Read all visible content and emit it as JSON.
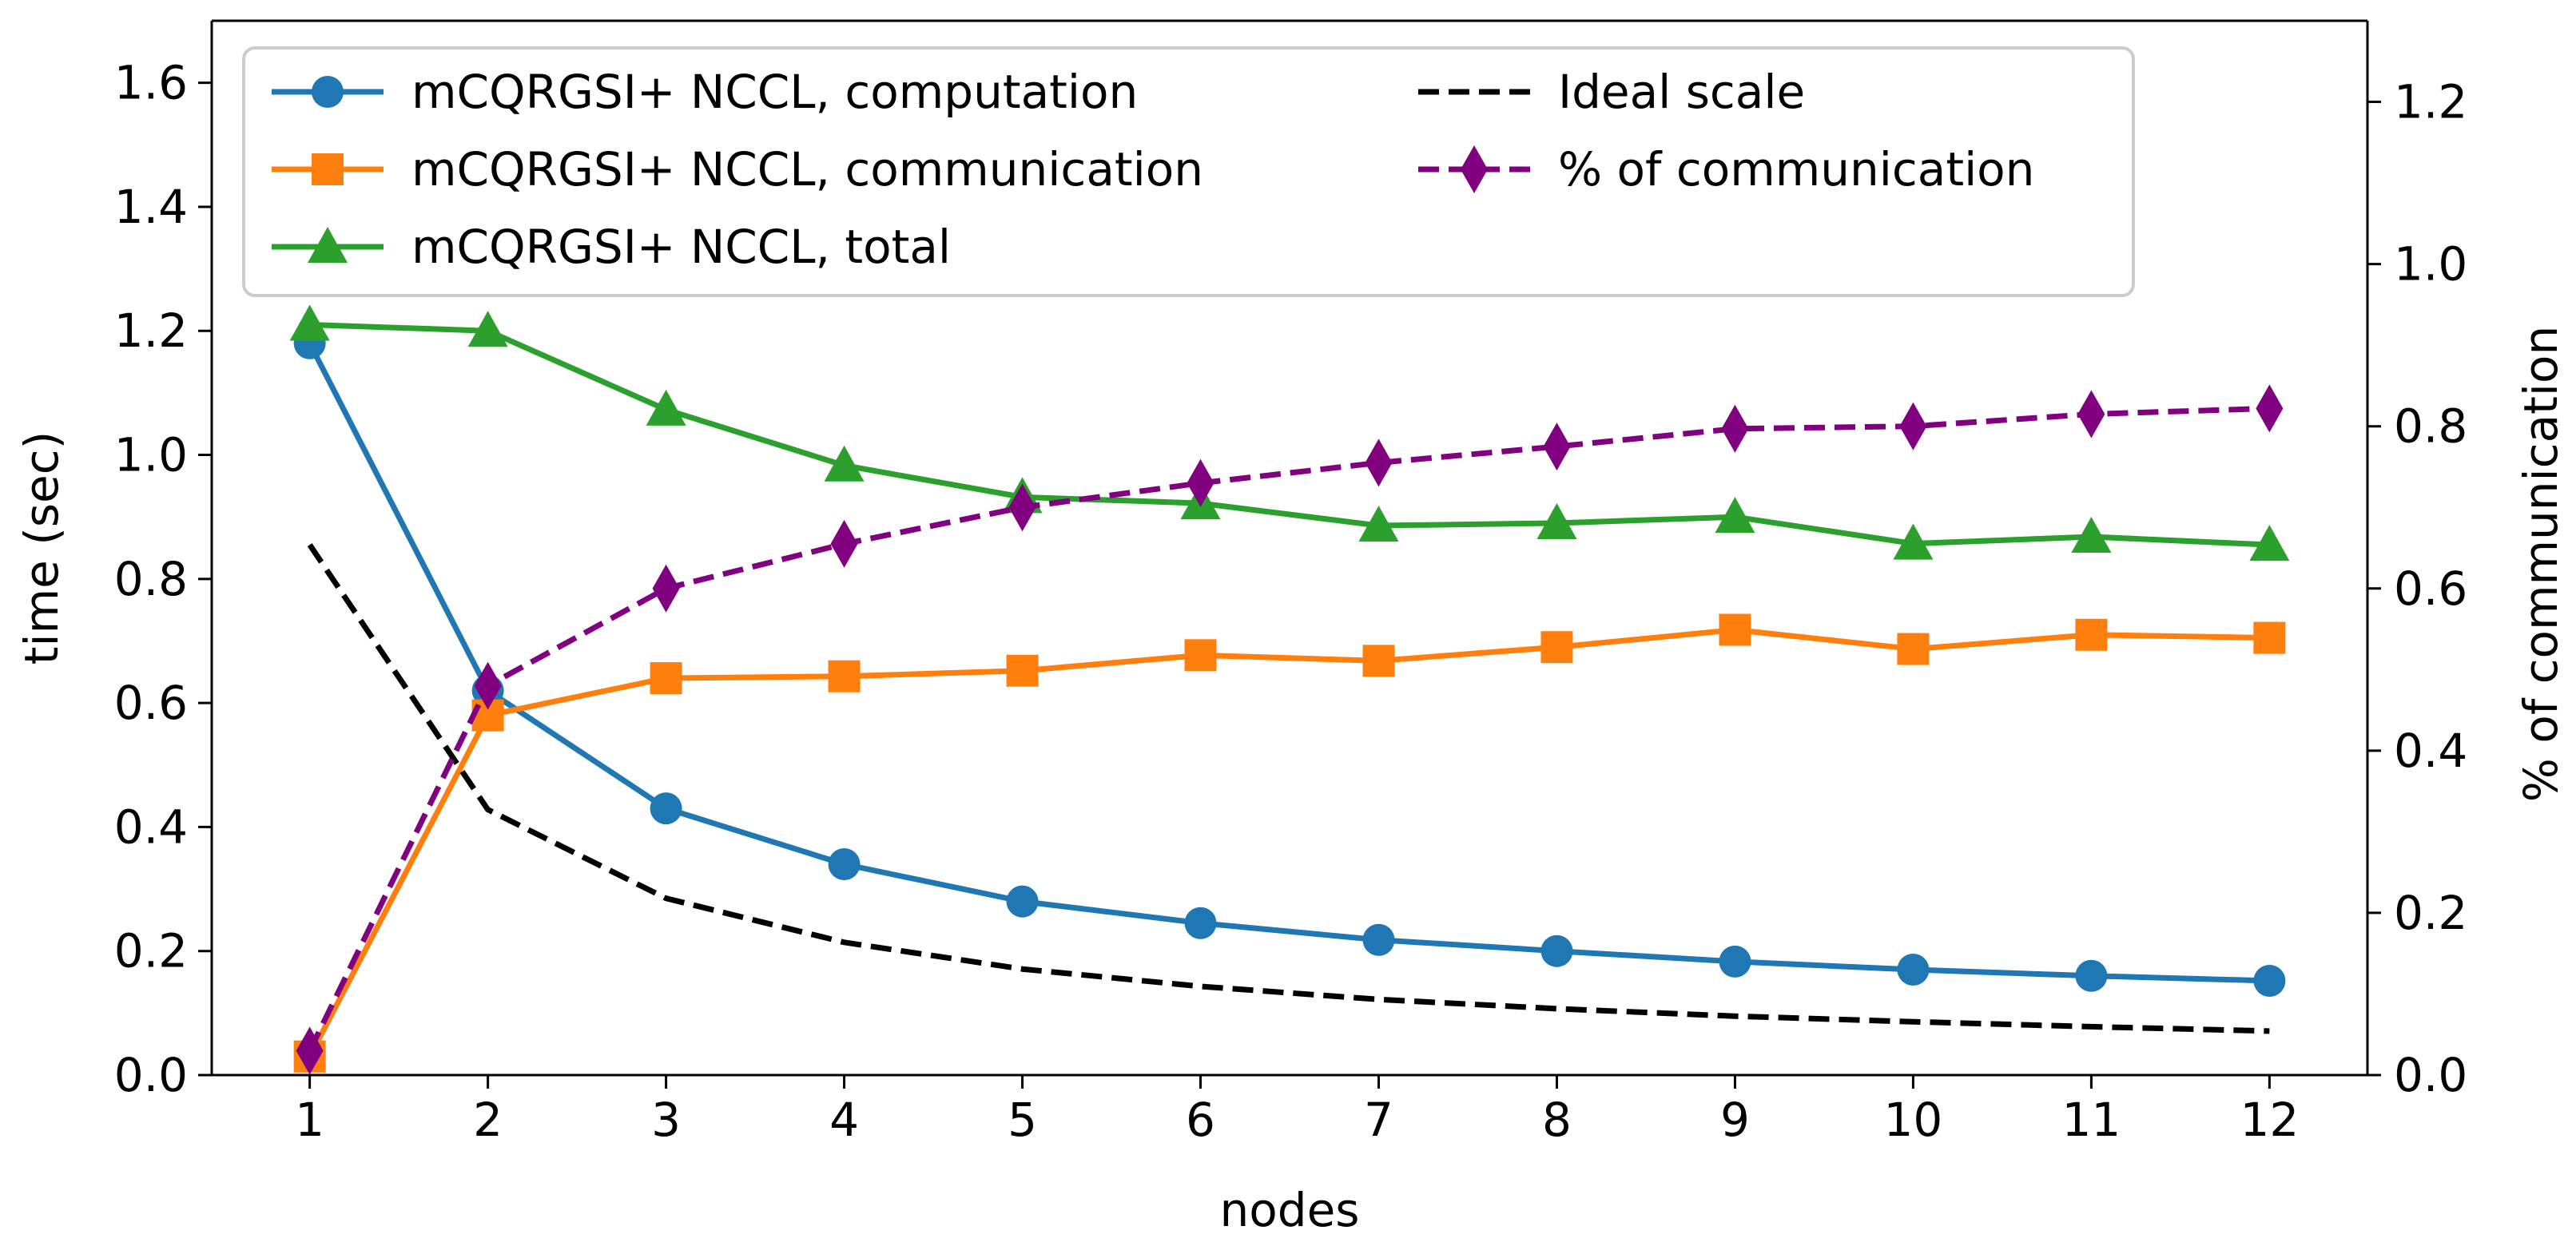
{
  "chart_data": {
    "type": "line",
    "x": [
      1,
      2,
      3,
      4,
      5,
      6,
      7,
      8,
      9,
      10,
      11,
      12
    ],
    "xlabel": "nodes",
    "ylabel": "time (sec)",
    "ylabel_right": "% of communication",
    "xlim": [
      0.45,
      12.55
    ],
    "ylim": [
      0.0,
      1.7
    ],
    "ylim_right": [
      0.0,
      1.3
    ],
    "xticks": [
      1,
      2,
      3,
      4,
      5,
      6,
      7,
      8,
      9,
      10,
      11,
      12
    ],
    "yticks": [
      "0.0",
      "0.2",
      "0.4",
      "0.6",
      "0.8",
      "1.0",
      "1.2",
      "1.4",
      "1.6"
    ],
    "yticks_right": [
      "0.0",
      "0.2",
      "0.4",
      "0.6",
      "0.8",
      "1.0",
      "1.2"
    ],
    "legend_position": "top",
    "grid": false,
    "series": [
      {
        "name": "mCQRGSI+ NCCL, computation",
        "axis": "left",
        "color": "#1f77b4",
        "marker": "circle",
        "dash": "solid",
        "values": [
          1.18,
          0.62,
          0.43,
          0.34,
          0.28,
          0.245,
          0.218,
          0.2,
          0.183,
          0.17,
          0.16,
          0.152
        ]
      },
      {
        "name": "mCQRGSI+ NCCL, communication",
        "axis": "left",
        "color": "#ff7f0e",
        "marker": "square",
        "dash": "solid",
        "values": [
          0.03,
          0.58,
          0.64,
          0.643,
          0.652,
          0.677,
          0.668,
          0.69,
          0.718,
          0.687,
          0.71,
          0.705
        ]
      },
      {
        "name": "mCQRGSI+ NCCL, total",
        "axis": "left",
        "color": "#2ca02c",
        "marker": "triangle",
        "dash": "solid",
        "values": [
          1.21,
          1.2,
          1.073,
          0.983,
          0.932,
          0.922,
          0.886,
          0.89,
          0.9,
          0.857,
          0.868,
          0.855
        ]
      },
      {
        "name": "Ideal scale",
        "axis": "left",
        "color": "#000000",
        "marker": "none",
        "dash": "dashed",
        "values": [
          0.855,
          0.428,
          0.285,
          0.214,
          0.171,
          0.143,
          0.122,
          0.107,
          0.095,
          0.086,
          0.078,
          0.071
        ]
      },
      {
        "name": "% of communication",
        "axis": "right",
        "color": "#800080",
        "marker": "diamond",
        "dash": "dashed",
        "values": [
          0.03,
          0.48,
          0.6,
          0.655,
          0.7,
          0.73,
          0.755,
          0.775,
          0.797,
          0.8,
          0.815,
          0.822
        ]
      }
    ]
  }
}
